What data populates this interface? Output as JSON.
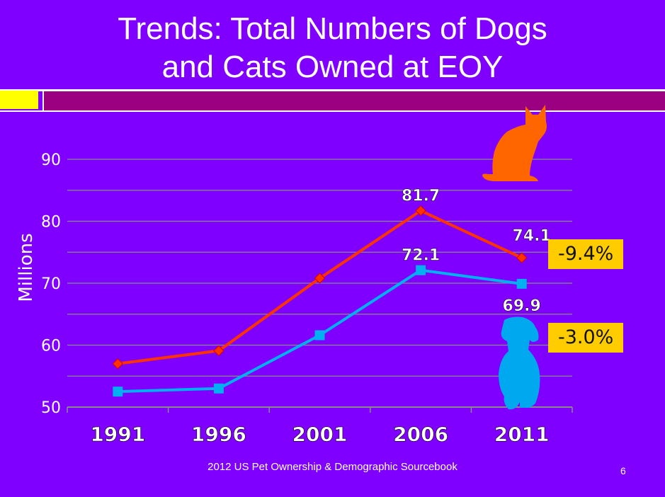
{
  "slide": {
    "title_line1": "Trends: Total Numbers of Dogs",
    "title_line2": "and Cats Owned at EOY",
    "footer": "2012 US Pet Ownership & Demographic Sourcebook",
    "slide_number": "6"
  },
  "badges": {
    "cats_change": "-9.4%",
    "dogs_change": "-3.0%"
  },
  "chart_data": {
    "type": "line",
    "title": "",
    "xlabel": "",
    "ylabel": "Millions",
    "categories": [
      "1991",
      "1996",
      "2001",
      "2006",
      "2011"
    ],
    "ylim": [
      50,
      90
    ],
    "yticks": [
      50,
      60,
      70,
      80,
      90
    ],
    "grid": true,
    "series": [
      {
        "color": "#ff3300",
        "marker": "diamond",
        "values": [
          57.0,
          59.1,
          70.8,
          81.7,
          74.1
        ],
        "labels": [
          "",
          "",
          "",
          "81.7",
          "74.1"
        ]
      },
      {
        "color": "#00b0f0",
        "marker": "square",
        "values": [
          52.5,
          53.0,
          61.6,
          72.1,
          69.9
        ],
        "labels": [
          "",
          "",
          "",
          "72.1",
          "69.9"
        ]
      }
    ],
    "colors": {
      "cat_icon": "#ff6600",
      "dog_icon": "#00a8f0",
      "grid": "#8a8a8a",
      "axis": "#8a8a8a"
    }
  }
}
